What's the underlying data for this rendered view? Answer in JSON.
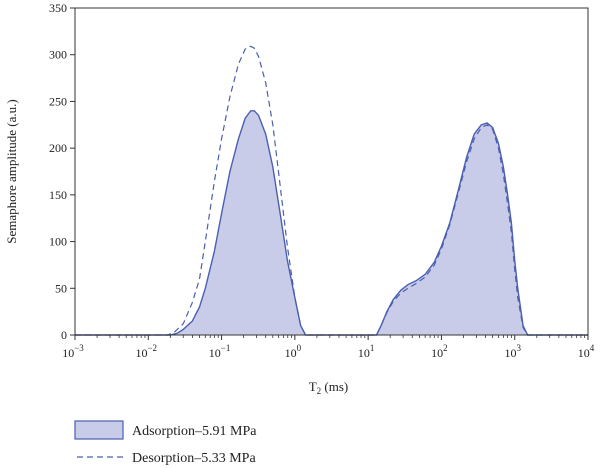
{
  "chart_data": {
    "type": "area",
    "title": "",
    "xlabel_main": "T",
    "xlabel_sub": "2",
    "xlabel_unit": " (ms)",
    "ylabel": "Semaphore amplitude (a.u.)",
    "x_scale": "log",
    "xlim": [
      0.001,
      10000
    ],
    "ylim": [
      0,
      350
    ],
    "x_ticks": [
      {
        "base": "10",
        "exp": "−3",
        "value": 0.001
      },
      {
        "base": "10",
        "exp": "−2",
        "value": 0.01
      },
      {
        "base": "10",
        "exp": "−1",
        "value": 0.1
      },
      {
        "base": "10",
        "exp": "0",
        "value": 1
      },
      {
        "base": "10",
        "exp": "1",
        "value": 10
      },
      {
        "base": "10",
        "exp": "2",
        "value": 100
      },
      {
        "base": "10",
        "exp": "3",
        "value": 1000
      },
      {
        "base": "10",
        "exp": "4",
        "value": 10000
      }
    ],
    "y_ticks": [
      "0",
      "50",
      "100",
      "150",
      "200",
      "250",
      "300",
      "350"
    ],
    "grid": false,
    "legend_position": "bottom-left",
    "series": [
      {
        "name": "Adsorption–5.91 MPa",
        "style": "filled-solid",
        "line_color": "#4a5fb0",
        "fill_color": "#c9cce8",
        "x": [
          0.001,
          0.02,
          0.025,
          0.03,
          0.04,
          0.05,
          0.06,
          0.08,
          0.1,
          0.13,
          0.17,
          0.21,
          0.25,
          0.28,
          0.32,
          0.4,
          0.5,
          0.63,
          0.79,
          1.0,
          1.2,
          1.4,
          13,
          15,
          18,
          22,
          28,
          35,
          45,
          60,
          80,
          100,
          130,
          170,
          220,
          280,
          350,
          420,
          500,
          600,
          700,
          800,
          900,
          1000,
          1100,
          1300,
          1500,
          10000
        ],
        "y": [
          0,
          0,
          2,
          6,
          15,
          30,
          50,
          90,
          130,
          175,
          210,
          232,
          240,
          240,
          235,
          215,
          180,
          130,
          80,
          40,
          10,
          0,
          0,
          10,
          25,
          38,
          48,
          54,
          58,
          65,
          78,
          95,
          120,
          155,
          190,
          215,
          225,
          227,
          222,
          205,
          180,
          150,
          120,
          80,
          50,
          10,
          0,
          0
        ]
      },
      {
        "name": "Desorption–5.33 MPa",
        "style": "dashed",
        "line_color": "#4a5fb0",
        "x": [
          0.001,
          0.018,
          0.022,
          0.03,
          0.04,
          0.05,
          0.06,
          0.08,
          0.1,
          0.13,
          0.17,
          0.21,
          0.25,
          0.28,
          0.32,
          0.4,
          0.5,
          0.63,
          0.79,
          1.0,
          1.2,
          1.4,
          13,
          15,
          18,
          22,
          28,
          35,
          45,
          60,
          80,
          100,
          130,
          170,
          220,
          280,
          350,
          420,
          500,
          600,
          700,
          800,
          900,
          1000,
          1100,
          1300,
          1500,
          10000
        ],
        "y": [
          0,
          0,
          2,
          12,
          35,
          60,
          100,
          165,
          210,
          255,
          290,
          306,
          309,
          307,
          298,
          270,
          225,
          160,
          95,
          40,
          10,
          0,
          0,
          10,
          24,
          36,
          45,
          50,
          55,
          62,
          75,
          92,
          118,
          152,
          185,
          210,
          222,
          225,
          220,
          200,
          172,
          140,
          110,
          70,
          40,
          8,
          0,
          0
        ]
      }
    ]
  }
}
